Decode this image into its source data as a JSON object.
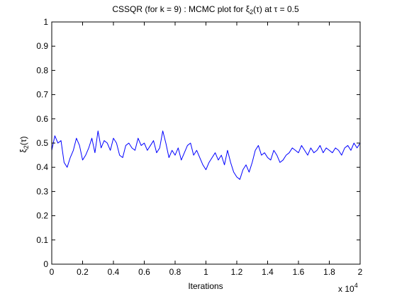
{
  "chart_data": {
    "type": "line",
    "title": "CSSQR (for k = 9) : MCMC plot for ξ₂(τ) at τ = 0.5",
    "title_parts": {
      "prefix": "CSSQR (for k = 9) : MCMC plot for ",
      "symbol": "ξ",
      "subscript": "2",
      "suffix": "(τ) at τ = 0.5"
    },
    "xlabel": "Iterations",
    "ylabel": "ξ₂(τ)",
    "ylabel_parts": {
      "symbol": "ξ",
      "subscript": "2",
      "suffix": "(τ)"
    },
    "x_exponent": {
      "base": "x 10",
      "power": "4"
    },
    "xlim": [
      0,
      2
    ],
    "ylim": [
      0,
      1
    ],
    "x_ticks": [
      "0",
      "0.2",
      "0.4",
      "0.6",
      "0.8",
      "1",
      "1.2",
      "1.4",
      "1.6",
      "1.8",
      "2"
    ],
    "y_ticks": [
      "0",
      "0.1",
      "0.2",
      "0.3",
      "0.4",
      "0.5",
      "0.6",
      "0.7",
      "0.8",
      "0.9",
      "1"
    ],
    "grid": false,
    "legend": "none",
    "series": [
      {
        "color": "#0000ff",
        "x": [
          0,
          0.02,
          0.04,
          0.06,
          0.08,
          0.1,
          0.12,
          0.14,
          0.16,
          0.18,
          0.2,
          0.22,
          0.24,
          0.26,
          0.28,
          0.3,
          0.32,
          0.34,
          0.36,
          0.38,
          0.4,
          0.42,
          0.44,
          0.46,
          0.48,
          0.5,
          0.52,
          0.54,
          0.56,
          0.58,
          0.6,
          0.62,
          0.64,
          0.66,
          0.68,
          0.7,
          0.72,
          0.74,
          0.76,
          0.78,
          0.8,
          0.82,
          0.84,
          0.86,
          0.88,
          0.9,
          0.92,
          0.94,
          0.96,
          0.98,
          1.0,
          1.02,
          1.04,
          1.06,
          1.08,
          1.1,
          1.12,
          1.14,
          1.16,
          1.18,
          1.2,
          1.22,
          1.24,
          1.26,
          1.28,
          1.3,
          1.32,
          1.34,
          1.36,
          1.38,
          1.4,
          1.42,
          1.44,
          1.46,
          1.48,
          1.5,
          1.52,
          1.54,
          1.56,
          1.58,
          1.6,
          1.62,
          1.64,
          1.66,
          1.68,
          1.7,
          1.72,
          1.74,
          1.76,
          1.78,
          1.8,
          1.82,
          1.84,
          1.86,
          1.88,
          1.9,
          1.92,
          1.94,
          1.96,
          1.98,
          2.0
        ],
        "y": [
          0.47,
          0.53,
          0.5,
          0.51,
          0.42,
          0.4,
          0.44,
          0.47,
          0.52,
          0.49,
          0.43,
          0.45,
          0.48,
          0.52,
          0.46,
          0.55,
          0.48,
          0.51,
          0.5,
          0.47,
          0.52,
          0.5,
          0.45,
          0.44,
          0.49,
          0.5,
          0.48,
          0.47,
          0.52,
          0.49,
          0.5,
          0.47,
          0.49,
          0.51,
          0.46,
          0.48,
          0.55,
          0.5,
          0.44,
          0.47,
          0.45,
          0.48,
          0.43,
          0.46,
          0.49,
          0.5,
          0.45,
          0.47,
          0.44,
          0.41,
          0.39,
          0.42,
          0.44,
          0.46,
          0.43,
          0.45,
          0.41,
          0.47,
          0.42,
          0.38,
          0.36,
          0.35,
          0.39,
          0.41,
          0.38,
          0.42,
          0.47,
          0.49,
          0.45,
          0.46,
          0.44,
          0.43,
          0.47,
          0.45,
          0.42,
          0.43,
          0.45,
          0.46,
          0.48,
          0.47,
          0.46,
          0.49,
          0.47,
          0.45,
          0.48,
          0.46,
          0.47,
          0.49,
          0.46,
          0.48,
          0.47,
          0.46,
          0.48,
          0.47,
          0.45,
          0.48,
          0.49,
          0.47,
          0.5,
          0.48,
          0.5
        ]
      }
    ]
  }
}
